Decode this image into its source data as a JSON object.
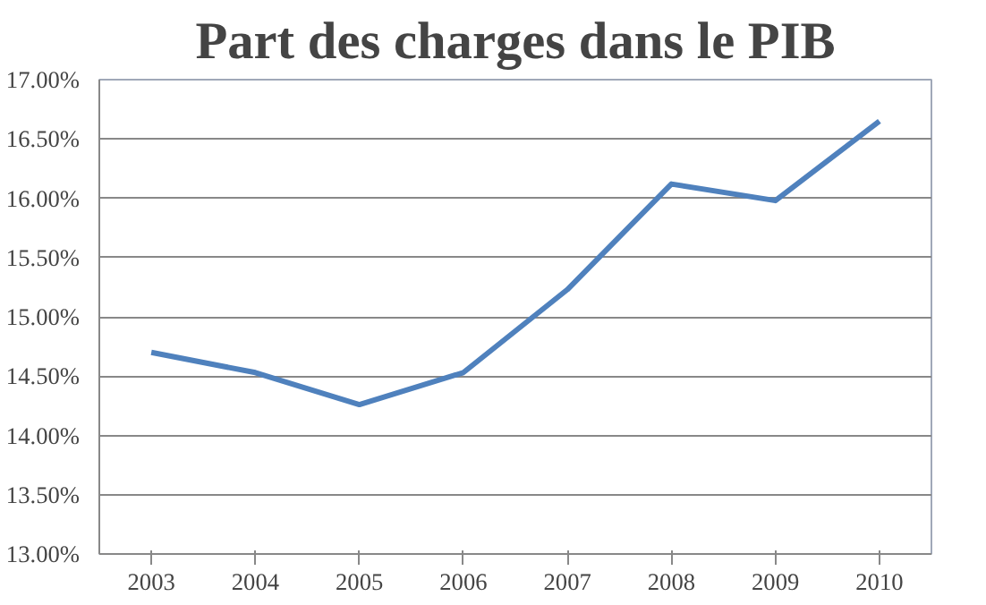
{
  "chart_data": {
    "type": "line",
    "title": "Part des charges dans le PIB",
    "categories": [
      "2003",
      "2004",
      "2005",
      "2006",
      "2007",
      "2008",
      "2009",
      "2010"
    ],
    "series": [
      {
        "color": "#4f81bd",
        "values": [
          14.7,
          14.53,
          14.26,
          14.53,
          15.23,
          16.12,
          15.98,
          16.65
        ]
      }
    ],
    "ylim": [
      13,
      17
    ],
    "yticks": [
      {
        "value": 13,
        "label": "13.00%"
      },
      {
        "value": 13.5,
        "label": "13.50%"
      },
      {
        "value": 14,
        "label": "14.00%"
      },
      {
        "value": 14.5,
        "label": "14.50%"
      },
      {
        "value": 15,
        "label": "15.00%"
      },
      {
        "value": 15.5,
        "label": "15.50%"
      },
      {
        "value": 16,
        "label": "16.00%"
      },
      {
        "value": 16.5,
        "label": "16.50%"
      },
      {
        "value": 17,
        "label": "17.00%"
      }
    ],
    "grid": "y",
    "marker": "none",
    "line_style": "solid"
  }
}
